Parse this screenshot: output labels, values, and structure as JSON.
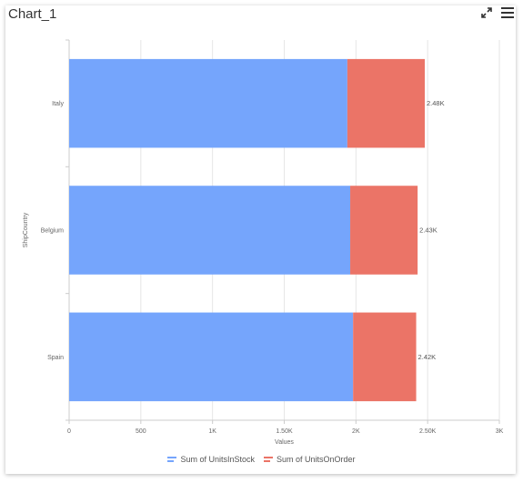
{
  "panel": {
    "title": "Chart_1",
    "expand_icon": "expand-arrows-icon",
    "menu_icon": "hamburger-menu-icon"
  },
  "chart_data": {
    "type": "bar",
    "orientation": "horizontal",
    "stacked": true,
    "categories": [
      "Italy",
      "Belgium",
      "Spain"
    ],
    "series": [
      {
        "name": "Sum of UnitsInStock",
        "color": "#75A5FC",
        "values": [
          1940,
          1960,
          1980
        ]
      },
      {
        "name": "Sum of UnitsOnOrder",
        "color": "#EB7467",
        "values": [
          540,
          470,
          440
        ]
      }
    ],
    "data_labels": [
      "2.48K",
      "2.43K",
      "2.42K"
    ],
    "xlabel": "Values",
    "ylabel": "ShipCountry",
    "xlim": [
      0,
      3000
    ],
    "xticks": [
      0,
      500,
      1000,
      1500,
      2000,
      2500,
      3000
    ],
    "xtick_labels": [
      "0",
      "500",
      "1K",
      "1.50K",
      "2K",
      "2.50K",
      "3K"
    ],
    "grid": true,
    "legend_position": "bottom"
  }
}
